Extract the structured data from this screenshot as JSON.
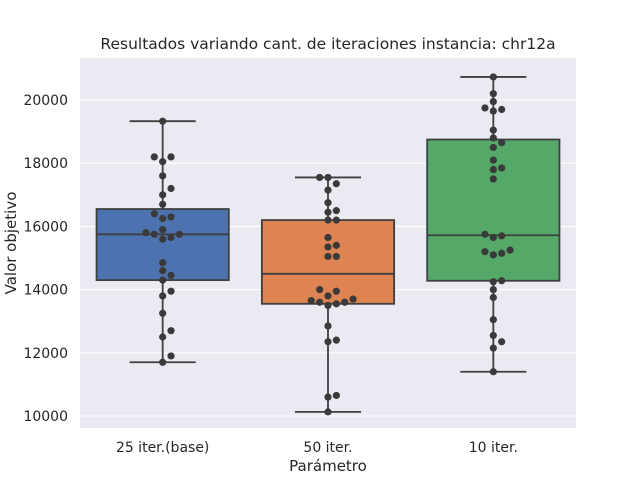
{
  "chart_data": {
    "type": "box",
    "title": "Resultados variando cant. de iteraciones instancia: chr12a",
    "xlabel": "Parámetro",
    "ylabel": "Valor objetivo",
    "categories": [
      "25 iter.(base)",
      "50 iter.",
      "10 iter."
    ],
    "ylim": [
      9620,
      21330
    ],
    "yticks": [
      10000,
      12000,
      14000,
      16000,
      18000,
      20000
    ],
    "grid": true,
    "legend": "none",
    "colors": [
      "#4c72b0",
      "#dd8452",
      "#55a868"
    ],
    "background": "#eaeaf2",
    "point_color": "#3a3a3a",
    "boxes": [
      {
        "whisker_low": 11700,
        "q1": 14300,
        "median": 15750,
        "q3": 16550,
        "whisker_high": 19330
      },
      {
        "whisker_low": 10130,
        "q1": 13550,
        "median": 14500,
        "q3": 16200,
        "whisker_high": 17550
      },
      {
        "whisker_low": 11400,
        "q1": 14280,
        "median": 15720,
        "q3": 18750,
        "whisker_high": 20730
      }
    ],
    "points": [
      [
        11700,
        11900,
        12500,
        12700,
        13250,
        13800,
        13950,
        14300,
        14450,
        14600,
        14850,
        15600,
        15650,
        15750,
        15750,
        15800,
        15900,
        16250,
        16300,
        16400,
        16700,
        17000,
        17200,
        17600,
        18050,
        18200,
        18200,
        19330
      ],
      [
        10130,
        10600,
        10650,
        12350,
        12400,
        12850,
        13500,
        13550,
        13600,
        13600,
        13650,
        13700,
        13800,
        13950,
        14000,
        15050,
        15050,
        15350,
        15400,
        15650,
        16200,
        16200,
        16450,
        16500,
        16750,
        17150,
        17350,
        17550,
        17550
      ],
      [
        11400,
        12150,
        12350,
        12550,
        13050,
        13750,
        14000,
        14250,
        14280,
        15100,
        15150,
        15200,
        15250,
        15650,
        15700,
        15750,
        17500,
        17800,
        17850,
        18100,
        18500,
        18650,
        18800,
        19050,
        19650,
        19700,
        19750,
        19950,
        20200,
        20730
      ]
    ]
  }
}
